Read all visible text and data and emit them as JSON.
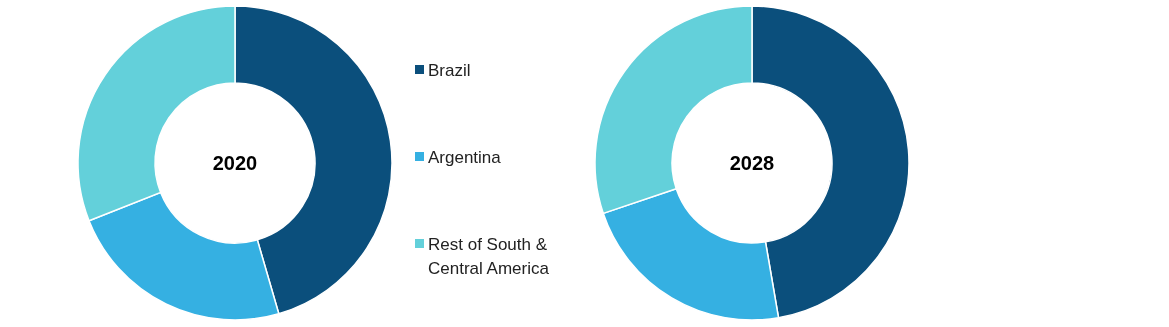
{
  "chart_data": [
    {
      "type": "donut",
      "title": "2020",
      "categories": [
        "Brazil",
        "Argentina",
        "Rest of South & Central America"
      ],
      "values": [
        45.5,
        23.5,
        31
      ],
      "colors": [
        "#0b4f7c",
        "#35b0e2",
        "#63d0da"
      ],
      "legend": "right"
    },
    {
      "type": "donut",
      "title": "2028",
      "categories": [
        null,
        null,
        null
      ],
      "values": [
        47.3,
        22.5,
        30.2
      ],
      "colors": [
        "#0b4f7c",
        "#35b0e2",
        "#63d0da"
      ],
      "legend": false
    }
  ]
}
